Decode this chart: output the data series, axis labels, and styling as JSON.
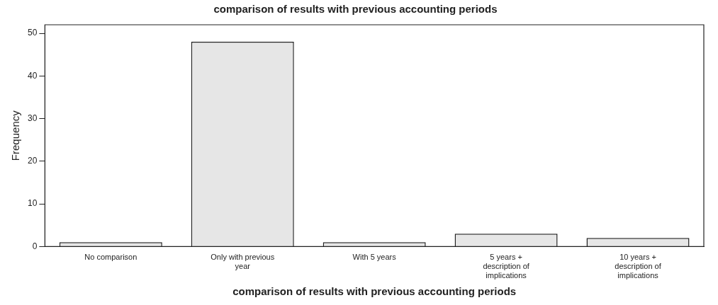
{
  "chart_data": {
    "type": "bar",
    "title": "comparison of results with previous accounting periods",
    "xlabel": "comparison of results with previous accounting periods",
    "ylabel": "Frequency",
    "categories": [
      "No comparison",
      "Only with previous year",
      "With 5 years",
      "5 years + description of implications",
      "10 years + description of implications"
    ],
    "values": [
      1,
      48,
      1,
      3,
      2
    ],
    "color": "#e6e6e6",
    "ylim": [
      0,
      52
    ],
    "yticks": [
      0,
      10,
      20,
      30,
      40,
      50
    ],
    "grid": false,
    "legend": false
  }
}
